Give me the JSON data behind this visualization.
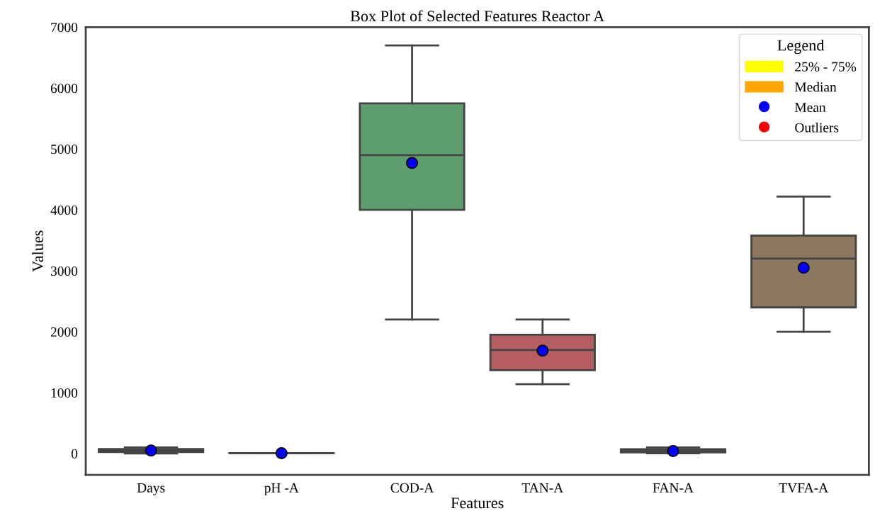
{
  "chart_data": {
    "type": "box",
    "title": "Box Plot of Selected Features Reactor A",
    "xlabel": "Features",
    "ylabel": "Values",
    "legend_title": "Legend",
    "legend": "top right",
    "grid": false,
    "categories": [
      "Days",
      "pH -A",
      "COD-A",
      "TAN-A",
      "FAN-A",
      "TVFA-A"
    ],
    "ylim": [
      -350,
      7000
    ],
    "yticks": [
      0,
      1000,
      2000,
      3000,
      4000,
      5000,
      6000,
      7000
    ],
    "series": [
      {
        "name": "25% - 75%",
        "color": "#ffff00",
        "type": "box",
        "colors": [
          "#5875a4",
          "#cc8963",
          "#5f9e6e",
          "#b55d60",
          "#7f76a6",
          "#8c7761"
        ],
        "boxes": [
          {
            "low": 1,
            "q1": 25,
            "median": 50,
            "q3": 75,
            "high": 100
          },
          {
            "low": 6.5,
            "q1": 7,
            "median": 7.2,
            "q3": 7.5,
            "high": 8
          },
          {
            "low": 2200,
            "q1": 4000,
            "median": 4900,
            "q3": 5750,
            "high": 6700
          },
          {
            "low": 1140,
            "q1": 1370,
            "median": 1700,
            "q3": 1950,
            "high": 2200
          },
          {
            "low": 5,
            "q1": 20,
            "median": 40,
            "q3": 70,
            "high": 100
          },
          {
            "low": 2000,
            "q1": 2400,
            "median": 3200,
            "q3": 3580,
            "high": 4220
          }
        ]
      },
      {
        "name": "Median",
        "color": "#ffa500",
        "type": "box",
        "values": [
          null,
          null,
          null,
          null,
          null,
          null
        ]
      },
      {
        "name": "Mean",
        "color": "#0000ff",
        "type": "scatter",
        "marker": "circle",
        "values": [
          50,
          7,
          4770,
          1690,
          40,
          3050
        ]
      },
      {
        "name": "Outliers",
        "color": "#ff0000",
        "type": "scatter",
        "marker": "circle",
        "values": [
          null,
          null,
          null,
          null,
          null,
          null
        ]
      }
    ]
  }
}
